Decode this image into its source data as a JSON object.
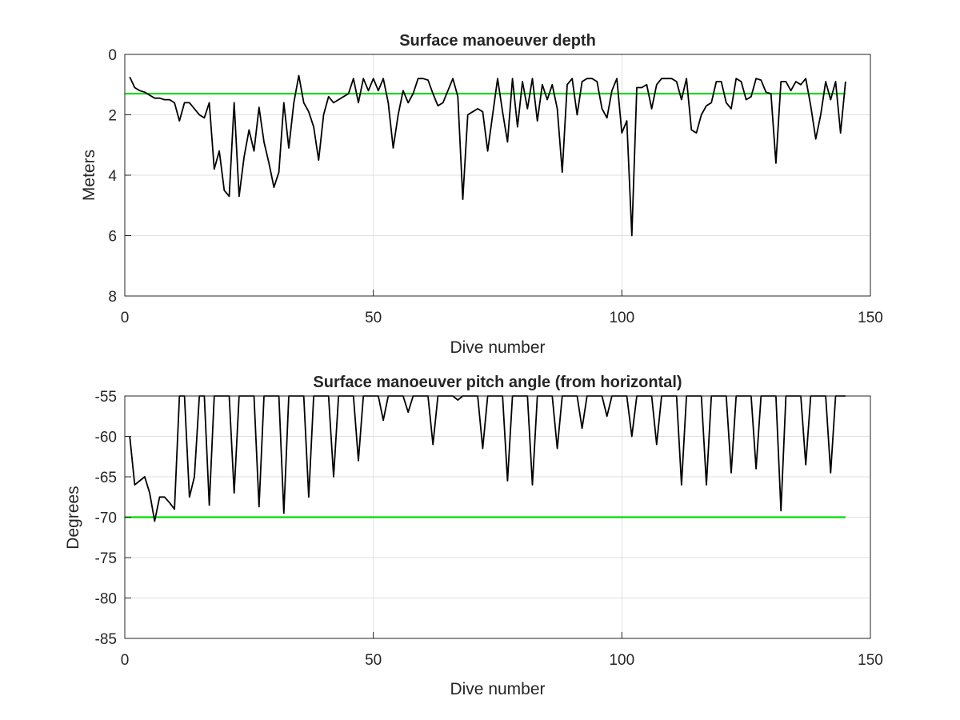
{
  "chart_data": [
    {
      "type": "line",
      "title": "Surface manoeuver depth",
      "xlabel": "Dive number",
      "ylabel": "Meters",
      "xlim": [
        0,
        150
      ],
      "ylim": [
        0,
        8
      ],
      "y_reversed": true,
      "xticks": [
        "0",
        "50",
        "100",
        "150"
      ],
      "yticks": [
        "0",
        "2",
        "4",
        "6",
        "8"
      ],
      "grid": true,
      "colors": {
        "series": "#000000",
        "threshold": "#00dd00"
      },
      "threshold": {
        "value": 1.3,
        "x": [
          0,
          145
        ]
      },
      "series": [
        {
          "x": [
            1,
            2,
            3,
            4,
            5,
            6,
            7,
            8,
            9,
            10,
            11,
            12,
            13,
            14,
            15,
            16,
            17,
            18,
            19,
            20,
            21,
            22,
            23,
            24,
            25,
            26,
            27,
            28,
            29,
            30,
            31,
            32,
            33,
            34,
            35,
            36,
            37,
            38,
            39,
            40,
            41,
            42,
            43,
            44,
            45,
            46,
            47,
            48,
            49,
            50,
            51,
            52,
            53,
            54,
            55,
            56,
            57,
            58,
            59,
            60,
            61,
            62,
            63,
            64,
            65,
            66,
            67,
            68,
            69,
            70,
            71,
            72,
            73,
            74,
            75,
            76,
            77,
            78,
            79,
            80,
            81,
            82,
            83,
            84,
            85,
            86,
            87,
            88,
            89,
            90,
            91,
            92,
            93,
            94,
            95,
            96,
            97,
            98,
            99,
            100,
            101,
            102,
            103,
            104,
            105,
            106,
            107,
            108,
            109,
            110,
            111,
            112,
            113,
            114,
            115,
            116,
            117,
            118,
            119,
            120,
            121,
            122,
            123,
            124,
            125,
            126,
            127,
            128,
            129,
            130,
            131,
            132,
            133,
            134,
            135,
            136,
            137,
            138,
            139,
            140,
            141,
            142,
            143,
            144,
            145
          ],
          "values": [
            0.75,
            1.1,
            1.2,
            1.25,
            1.35,
            1.45,
            1.45,
            1.5,
            1.5,
            1.6,
            2.2,
            1.6,
            1.6,
            1.8,
            2.0,
            2.1,
            1.6,
            3.8,
            3.2,
            4.5,
            4.7,
            1.6,
            4.7,
            3.4,
            2.5,
            3.2,
            1.75,
            2.9,
            3.6,
            4.4,
            3.9,
            1.6,
            3.1,
            1.6,
            0.7,
            1.6,
            1.9,
            2.4,
            3.5,
            2.0,
            1.4,
            1.6,
            1.5,
            1.4,
            1.3,
            0.8,
            1.6,
            0.8,
            1.2,
            0.8,
            1.2,
            0.8,
            1.6,
            3.1,
            2.0,
            1.2,
            1.6,
            1.3,
            0.8,
            0.8,
            0.85,
            1.3,
            1.7,
            1.6,
            1.2,
            0.8,
            1.4,
            4.8,
            2.0,
            1.9,
            1.8,
            1.9,
            3.2,
            2.0,
            0.8,
            1.9,
            2.9,
            0.8,
            2.4,
            0.9,
            1.8,
            0.8,
            2.2,
            1.0,
            1.5,
            1.0,
            1.8,
            3.9,
            1.0,
            0.8,
            2.0,
            0.9,
            0.8,
            0.8,
            0.9,
            1.8,
            2.1,
            1.2,
            0.8,
            2.6,
            2.2,
            6.0,
            1.1,
            1.1,
            1.0,
            1.8,
            1.0,
            0.8,
            0.8,
            0.8,
            0.9,
            1.5,
            0.8,
            2.5,
            2.6,
            2.0,
            1.7,
            1.6,
            0.9,
            0.9,
            1.6,
            1.8,
            0.8,
            0.9,
            1.5,
            1.4,
            0.8,
            0.85,
            1.25,
            1.3,
            3.6,
            0.9,
            0.9,
            1.2,
            0.9,
            1.0,
            0.8,
            1.7,
            2.8,
            2.0,
            0.9,
            1.5,
            0.9,
            2.6,
            0.9
          ]
        }
      ]
    },
    {
      "type": "line",
      "title": "Surface manoeuver pitch angle (from horizontal)",
      "xlabel": "Dive number",
      "ylabel": "Degrees",
      "xlim": [
        0,
        150
      ],
      "ylim": [
        -85,
        -55
      ],
      "y_reversed": false,
      "xticks": [
        "0",
        "50",
        "100",
        "150"
      ],
      "yticks": [
        "-55",
        "-60",
        "-65",
        "-70",
        "-75",
        "-80",
        "-85"
      ],
      "grid": true,
      "colors": {
        "series": "#000000",
        "threshold": "#00dd00"
      },
      "threshold": {
        "value": -70,
        "x": [
          0,
          145
        ]
      },
      "series": [
        {
          "x": [
            1,
            2,
            3,
            4,
            5,
            6,
            7,
            8,
            9,
            10,
            11,
            12,
            13,
            14,
            15,
            16,
            17,
            18,
            19,
            20,
            21,
            22,
            23,
            24,
            25,
            26,
            27,
            28,
            29,
            30,
            31,
            32,
            33,
            34,
            35,
            36,
            37,
            38,
            39,
            40,
            41,
            42,
            43,
            44,
            45,
            46,
            47,
            48,
            49,
            50,
            51,
            52,
            53,
            54,
            55,
            56,
            57,
            58,
            59,
            60,
            61,
            62,
            63,
            64,
            65,
            66,
            67,
            68,
            69,
            70,
            71,
            72,
            73,
            74,
            75,
            76,
            77,
            78,
            79,
            80,
            81,
            82,
            83,
            84,
            85,
            86,
            87,
            88,
            89,
            90,
            91,
            92,
            93,
            94,
            95,
            96,
            97,
            98,
            99,
            100,
            101,
            102,
            103,
            104,
            105,
            106,
            107,
            108,
            109,
            110,
            111,
            112,
            113,
            114,
            115,
            116,
            117,
            118,
            119,
            120,
            121,
            122,
            123,
            124,
            125,
            126,
            127,
            128,
            129,
            130,
            131,
            132,
            133,
            134,
            135,
            136,
            137,
            138,
            139,
            140,
            141,
            142,
            143,
            144,
            145
          ],
          "values": [
            -60,
            -66,
            -65.5,
            -65,
            -67,
            -70.5,
            -67.5,
            -67.5,
            -68.2,
            -69,
            -55,
            -55,
            -67.5,
            -65,
            -55,
            -55,
            -68.5,
            -55,
            -55,
            -55,
            -55,
            -67,
            -55,
            -55,
            -55,
            -55,
            -68.7,
            -55,
            -55,
            -55,
            -55,
            -69.5,
            -55,
            -55,
            -55,
            -55,
            -67.5,
            -55,
            -55,
            -55,
            -55,
            -65,
            -55,
            -55,
            -55,
            -55,
            -63,
            -55,
            -55,
            -55,
            -55,
            -58,
            -55,
            -55,
            -55,
            -55,
            -57,
            -55,
            -55,
            -55,
            -55,
            -61,
            -55,
            -55,
            -55,
            -55,
            -55.5,
            -55,
            -55,
            -55,
            -55,
            -61.5,
            -55,
            -55,
            -55,
            -55,
            -65.5,
            -55,
            -55,
            -55,
            -55,
            -66,
            -55,
            -55,
            -55,
            -55,
            -61.5,
            -55,
            -55,
            -55,
            -55,
            -59,
            -55,
            -55,
            -55,
            -55,
            -57.5,
            -55,
            -55,
            -55,
            -55,
            -60,
            -55,
            -55,
            -55,
            -55,
            -61,
            -55,
            -55,
            -55,
            -55,
            -66,
            -55,
            -55,
            -55,
            -55,
            -66,
            -55,
            -55,
            -55,
            -55,
            -64.5,
            -55,
            -55,
            -55,
            -55,
            -64,
            -55,
            -55,
            -55,
            -55,
            -69.2,
            -55,
            -55,
            -55,
            -55,
            -63.5,
            -55,
            -55,
            -55,
            -55,
            -64.5,
            -55,
            -55,
            -55
          ]
        }
      ]
    }
  ]
}
